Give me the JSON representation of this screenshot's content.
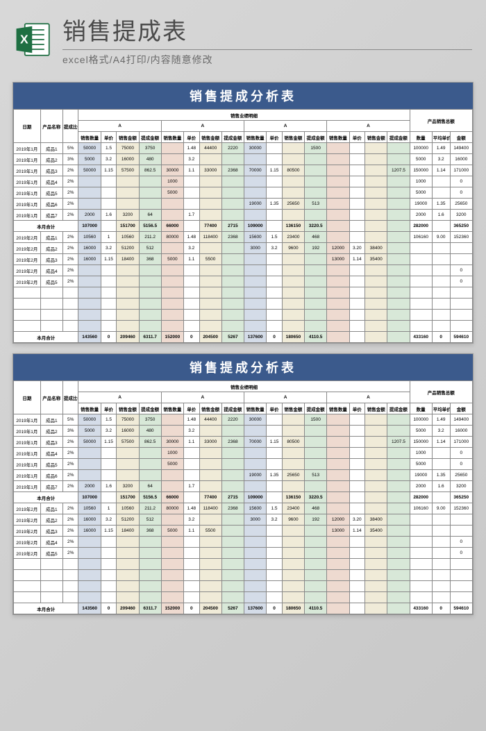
{
  "header": {
    "title": "销售提成表",
    "subtitle": "excel格式/A4打印/内容随意修改"
  },
  "sheet_title": "销售提成分析表",
  "col_headers": {
    "date": "日期",
    "product": "产品名称",
    "rate": "提成比例",
    "detail_group": "销售业绩明细",
    "section": "A",
    "qty": "销售数量",
    "price": "单价",
    "amount": "销售金额",
    "commission": "提成金额",
    "total_group": "产品销售总额",
    "tqty": "数量",
    "tprice": "平均单价",
    "tsum": "金额"
  },
  "month1_label": "本月合计",
  "month2_label": "本月合计",
  "rows1": [
    {
      "d": "2019年1月",
      "p": "成品1",
      "r": "5%",
      "a": [
        "50000",
        "1.5",
        "75000",
        "3750"
      ],
      "b": [
        "",
        "1.48",
        "44400",
        "2220"
      ],
      "c": [
        "30000",
        "",
        "",
        "1500"
      ],
      "d2": [
        "",
        "",
        "",
        ""
      ],
      "t": [
        "100000",
        "1.49",
        "149400"
      ]
    },
    {
      "d": "2019年1月",
      "p": "成品2",
      "r": "3%",
      "a": [
        "5000",
        "3.2",
        "16000",
        "480"
      ],
      "b": [
        "",
        "3.2",
        "",
        "",
        ""
      ],
      "c": [
        "",
        "",
        "",
        ""
      ],
      "d2": [
        "",
        "",
        "",
        ""
      ],
      "t": [
        "5000",
        "3.2",
        "16000"
      ]
    },
    {
      "d": "2019年1月",
      "p": "成品3",
      "r": "2%",
      "a": [
        "50000",
        "1.15",
        "57500",
        "862.5"
      ],
      "b": [
        "30000",
        "1.1",
        "33000",
        "2368"
      ],
      "c": [
        "70000",
        "1.15",
        "80500",
        "",
        ""
      ],
      "d2": [
        "",
        "",
        "",
        "1207.5"
      ],
      "t": [
        "150000",
        "1.14",
        "171000"
      ]
    },
    {
      "d": "2019年1月",
      "p": "成品4",
      "r": "2%",
      "a": [
        "",
        "",
        "",
        ""
      ],
      "b": [
        "1000",
        "",
        "",
        ""
      ],
      "c": [
        "",
        "",
        "",
        ""
      ],
      "d2": [
        "",
        "",
        "",
        ""
      ],
      "t": [
        "1000",
        "",
        "0"
      ]
    },
    {
      "d": "2019年1月",
      "p": "成品5",
      "r": "2%",
      "a": [
        "",
        "",
        "",
        ""
      ],
      "b": [
        "5000",
        "",
        "",
        ""
      ],
      "c": [
        "",
        "",
        "",
        ""
      ],
      "d2": [
        "",
        "",
        "",
        ""
      ],
      "t": [
        "5000",
        "",
        "0"
      ]
    },
    {
      "d": "2019年1月",
      "p": "成品6",
      "r": "2%",
      "a": [
        "",
        "",
        "",
        ""
      ],
      "b": [
        "",
        "",
        "",
        ""
      ],
      "c": [
        "19000",
        "1.35",
        "25650",
        "513"
      ],
      "d2": [
        "",
        "",
        "",
        ""
      ],
      "t": [
        "19000",
        "1.35",
        "25650"
      ]
    },
    {
      "d": "2019年1月",
      "p": "成品7",
      "r": "2%",
      "a": [
        "2000",
        "1.6",
        "3200",
        "64"
      ],
      "b": [
        "",
        "1.7",
        "",
        ""
      ],
      "c": [
        "",
        "",
        "",
        ""
      ],
      "d2": [
        "",
        "",
        "",
        ""
      ],
      "t": [
        "2000",
        "1.6",
        "3200"
      ]
    }
  ],
  "sub1": {
    "a": [
      "107000",
      "",
      "151700",
      "5156.5"
    ],
    "b": [
      "66000",
      "",
      "77400",
      "2715"
    ],
    "c": [
      "109000",
      "",
      "136150",
      "3220.5"
    ],
    "d2": [
      "",
      "",
      "",
      ""
    ],
    "t": [
      "282000",
      "",
      "365250"
    ]
  },
  "rows2": [
    {
      "d": "2019年2月",
      "p": "成品1",
      "r": "2%",
      "a": [
        "10560",
        "1",
        "10560",
        "211.2"
      ],
      "b": [
        "80000",
        "1.48",
        "118400",
        "2368"
      ],
      "c": [
        "15600",
        "1.5",
        "23400",
        "468"
      ],
      "d2": [
        "",
        "",
        "",
        ""
      ],
      "t": [
        "106160",
        "9.00",
        "152360"
      ]
    },
    {
      "d": "2019年2月",
      "p": "成品2",
      "r": "2%",
      "a": [
        "16000",
        "3.2",
        "51200",
        "512"
      ],
      "b": [
        "",
        "3.2",
        "",
        "",
        ""
      ],
      "c": [
        "3000",
        "3.2",
        "9600",
        "192"
      ],
      "d2": [
        "12000",
        "3.20",
        "38400",
        ""
      ],
      "t": [
        "",
        "",
        "",
        ""
      ]
    },
    {
      "d": "2019年2月",
      "p": "成品3",
      "r": "2%",
      "a": [
        "16000",
        "1.15",
        "18400",
        "368"
      ],
      "b": [
        "5000",
        "1.1",
        "5500",
        "",
        ""
      ],
      "c": [
        "",
        "",
        "",
        ""
      ],
      "d2": [
        "13000",
        "1.14",
        "35400",
        ""
      ],
      "t": [
        "",
        "",
        "",
        ""
      ]
    },
    {
      "d": "2019年2月",
      "p": "成品4",
      "r": "2%",
      "a": [
        "",
        "",
        "",
        ""
      ],
      "b": [
        "",
        "",
        "",
        ""
      ],
      "c": [
        "",
        "",
        "",
        ""
      ],
      "d2": [
        "",
        "",
        "",
        ""
      ],
      "t": [
        "",
        "",
        "0"
      ]
    },
    {
      "d": "2019年2月",
      "p": "成品5",
      "r": "2%",
      "a": [
        "",
        "",
        "",
        ""
      ],
      "b": [
        "",
        "",
        "",
        ""
      ],
      "c": [
        "",
        "",
        "",
        ""
      ],
      "d2": [
        "",
        "",
        "",
        ""
      ],
      "t": [
        "",
        "",
        "0"
      ]
    }
  ],
  "blank_rows": 4,
  "sub2": {
    "a": [
      "143560",
      "0",
      "209460",
      "6311.7"
    ],
    "b": [
      "152000",
      "0",
      "204500",
      "5267"
    ],
    "c": [
      "137600",
      "0",
      "180650",
      "4110.5"
    ],
    "d2": [
      "",
      "",
      "",
      ""
    ],
    "t": [
      "433160",
      "0",
      "594610"
    ]
  }
}
